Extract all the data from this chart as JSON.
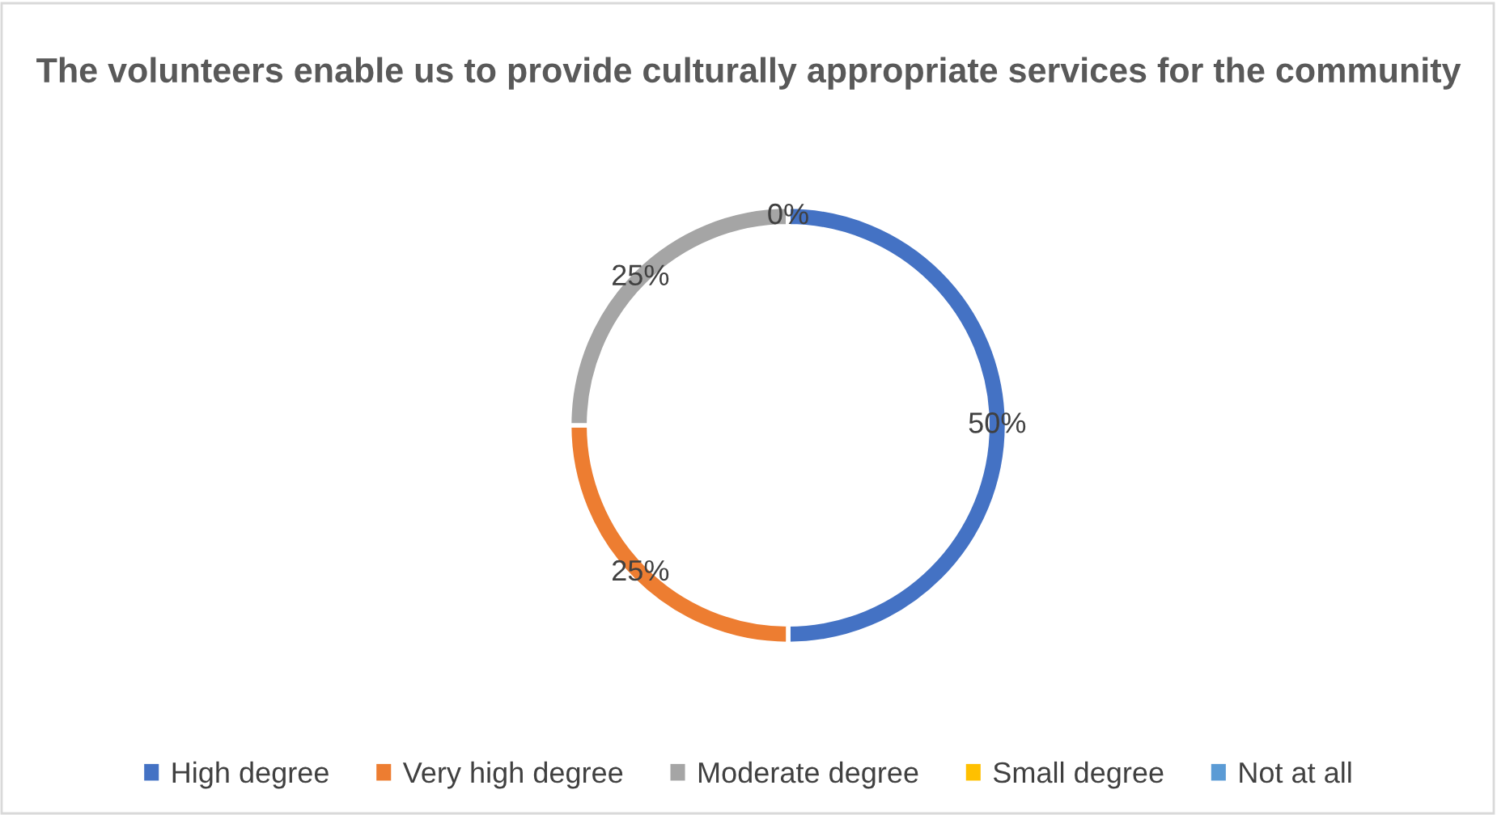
{
  "chart_data": {
    "type": "donut",
    "title": "The volunteers enable us to provide culturally appropriate services for the community",
    "categories": [
      "High degree",
      "Very high degree",
      "Moderate degree",
      "Small degree",
      "Not at all"
    ],
    "values": [
      50,
      25,
      25,
      0,
      0
    ],
    "colors": [
      "#4472c4",
      "#ed7d31",
      "#a5a5a5",
      "#ffc000",
      "#5b9bd5"
    ],
    "value_labels": [
      "50%",
      "25%",
      "25%",
      "0%",
      null
    ],
    "legend": "bottom"
  }
}
